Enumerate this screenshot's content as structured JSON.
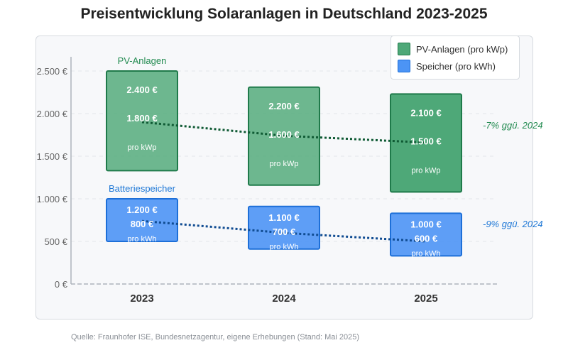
{
  "title": "Preisentwicklung Solaranlagen in Deutschland 2023-2025",
  "source": "Quelle: Fraunhofer ISE, Bundesnetzagentur, eigene Erhebungen (Stand: Mai 2025)",
  "colors": {
    "pv_fill": "#4ea878",
    "pv_stroke": "#1f7a4a",
    "pv_trend": "#0f5a34",
    "pv_label": "#218a4f",
    "storage_fill": "#4c94f5",
    "storage_stroke": "#1d6fd8",
    "storage_trend": "#104c92",
    "storage_label": "#1f78d6",
    "axis_text": "#666666",
    "category_text": "#333333"
  },
  "chart_data": {
    "type": "bar",
    "categories": [
      "2023",
      "2024",
      "2025"
    ],
    "ylim": [
      0,
      2500
    ],
    "y_ticks": [
      {
        "value": 0,
        "label": "0 €"
      },
      {
        "value": 500,
        "label": "500 €"
      },
      {
        "value": 1000,
        "label": "1.000 €"
      },
      {
        "value": 1500,
        "label": "1.500 €"
      },
      {
        "value": 2000,
        "label": "2.000 €"
      },
      {
        "value": 2500,
        "label": "2.500 €"
      }
    ],
    "grid": true,
    "legend_position": "top-right",
    "series": [
      {
        "key": "pv",
        "name": "PV-Anlagen (pro kWp)",
        "group_label": "PV-Anlagen",
        "unit_label": "pro kWp",
        "high": [
          2400,
          2200,
          2100
        ],
        "low": [
          1800,
          1600,
          1500
        ],
        "range_top": [
          2500,
          2310,
          2230
        ],
        "range_bottom": [
          1330,
          1160,
          1080
        ],
        "high_labels": [
          "2.400 €",
          "2.200 €",
          "2.100 €"
        ],
        "low_labels": [
          "1.800 €",
          "1.600 €",
          "1.500 €"
        ],
        "trend": [
          1900,
          1740,
          1660
        ],
        "trend_annotation": "-7% ggü. 2024"
      },
      {
        "key": "storage",
        "name": "Speicher (pro kWh)",
        "group_label": "Batteriespeicher",
        "unit_label": "pro kWh",
        "high": [
          1200,
          1100,
          1000
        ],
        "low": [
          800,
          700,
          600
        ],
        "range_top": [
          1000,
          910,
          830
        ],
        "range_bottom": [
          500,
          410,
          330
        ],
        "high_labels": [
          "1.200 €",
          "1.100 €",
          "1.000 €"
        ],
        "low_labels": [
          "800 €",
          "700 €",
          "600 €"
        ],
        "trend": [
          740,
          600,
          500
        ],
        "trend_annotation": "-9% ggü. 2024"
      }
    ]
  }
}
